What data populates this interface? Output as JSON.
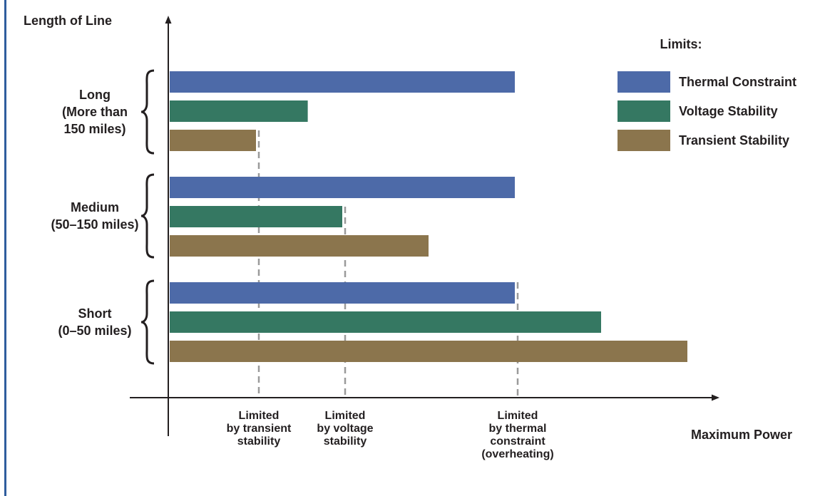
{
  "chart_data": {
    "type": "bar",
    "orientation": "horizontal",
    "y_axis_title": "Length of Line",
    "x_axis_title": "Maximum Power",
    "categories": [
      {
        "key": "long",
        "lines": [
          "Long",
          "(More than",
          "150 miles)"
        ]
      },
      {
        "key": "medium",
        "lines": [
          "Medium",
          "(50–150 miles)"
        ]
      },
      {
        "key": "short",
        "lines": [
          "Short",
          "(0–50 miles)"
        ]
      }
    ],
    "legend_title": "Limits:",
    "legend_position": "top-right",
    "series": [
      {
        "name": "Thermal Constraint",
        "color": "#4d6aa8",
        "values": [
          4.0,
          4.0,
          4.0
        ]
      },
      {
        "name": "Voltage Stability",
        "color": "#357862",
        "values": [
          1.6,
          2.0,
          5.0
        ]
      },
      {
        "name": "Transient Stability",
        "color": "#8b754d",
        "values": [
          1.0,
          3.0,
          6.0
        ]
      }
    ],
    "xlim": [
      0,
      6.4
    ],
    "reference_lines": [
      {
        "x": 1.0,
        "lines": [
          "Limited",
          "by transient",
          "stability"
        ]
      },
      {
        "x": 2.0,
        "lines": [
          "Limited",
          "by voltage",
          "stability"
        ]
      },
      {
        "x": 4.0,
        "lines": [
          "Limited",
          "by thermal",
          "constraint",
          "(overheating)"
        ]
      }
    ],
    "x_ticks": "none",
    "grid": false
  }
}
